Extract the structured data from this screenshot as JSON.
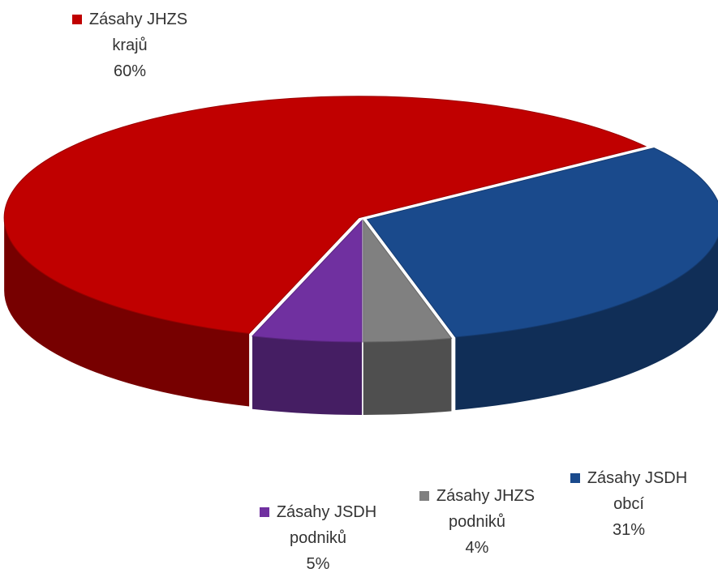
{
  "chart_data": {
    "type": "pie",
    "categories": [
      "Zásahy JHZS krajů",
      "Zásahy JSDH obcí",
      "Zásahy JHZS podniků",
      "Zásahy JSDH podniků"
    ],
    "values": [
      60,
      31,
      4,
      5
    ],
    "value_labels": [
      "60%",
      "31%",
      "4%",
      "5%"
    ],
    "colors": [
      "#c00000",
      "#1a4a8c",
      "#808080",
      "#7030a0"
    ]
  }
}
